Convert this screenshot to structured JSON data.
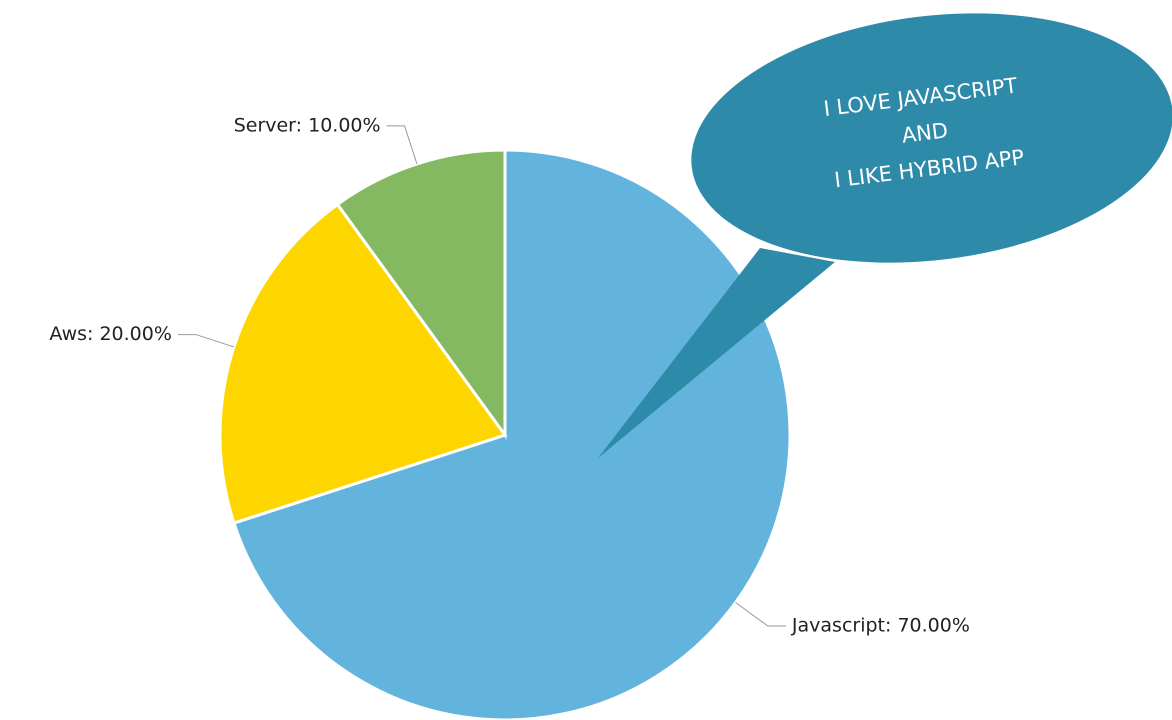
{
  "chart_data": {
    "type": "pie",
    "categories": [
      "Javascript",
      "Aws",
      "Server"
    ],
    "values": [
      70,
      20,
      10
    ],
    "value_labels": [
      "Javascript: 70.00%",
      "Aws: 20.00%",
      "Server: 10.00%"
    ],
    "colors": [
      "#63b4dd",
      "#fdd600",
      "#85b961"
    ],
    "annotation": {
      "lines": [
        "I LOVE JAVASCRIPT",
        "AND",
        "I LIKE HYBRID APP"
      ],
      "color": "#2e8aa9"
    }
  }
}
